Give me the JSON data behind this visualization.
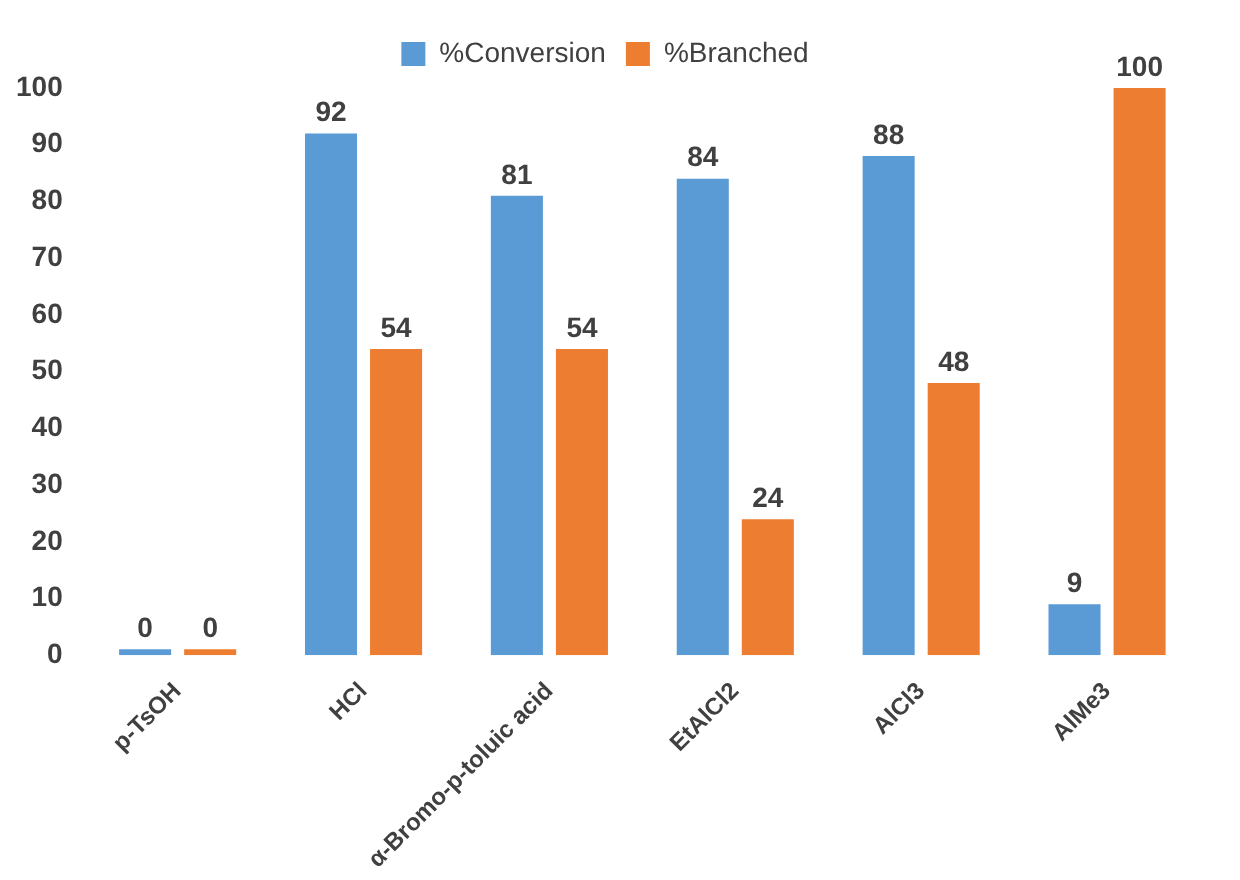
{
  "chart_data": {
    "type": "bar",
    "categories": [
      "p-TsOH",
      "HCl",
      "α-Bromo-p-toluic acid",
      "EtAlCl2",
      "AlCl3",
      "AlMe3"
    ],
    "series": [
      {
        "name": "%Conversion",
        "color": "#5b9bd5",
        "values": [
          0,
          92,
          81,
          84,
          88,
          9
        ]
      },
      {
        "name": "%Branched",
        "color": "#ed7d31",
        "values": [
          0,
          54,
          54,
          24,
          48,
          100
        ]
      }
    ],
    "ylim": [
      0,
      100
    ],
    "yticks": [
      0,
      10,
      20,
      30,
      40,
      50,
      60,
      70,
      80,
      90,
      100
    ],
    "grid": false,
    "legend": "top",
    "data_labels": true
  }
}
